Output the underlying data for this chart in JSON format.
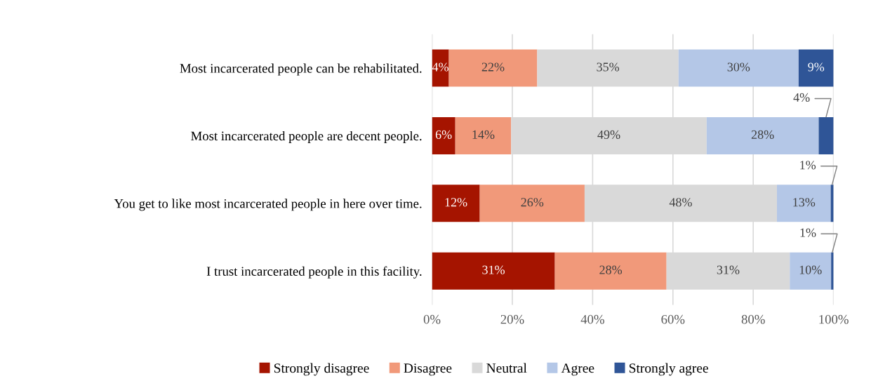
{
  "chart_data": {
    "type": "bar",
    "orientation": "horizontal",
    "stacked": true,
    "categories": [
      "Most incarcerated people can be rehabilitated.",
      "Most incarcerated people are decent people.",
      "You get to like most incarcerated people in here over time.",
      "I trust incarcerated people in this facility."
    ],
    "series": [
      {
        "name": "Strongly disagree",
        "color": "#a51400",
        "values": [
          4.2,
          5.8,
          11.9,
          30.6
        ],
        "value_labels": [
          "4%",
          "6%",
          "12%",
          "31%"
        ]
      },
      {
        "name": "Disagree",
        "color": "#f1997a",
        "values": [
          22.0,
          13.9,
          26.1,
          27.8
        ],
        "value_labels": [
          "22%",
          "14%",
          "26%",
          "28%"
        ]
      },
      {
        "name": "Neutral",
        "color": "#d9d9d9",
        "values": [
          35.2,
          48.7,
          47.9,
          30.7
        ],
        "value_labels": [
          "35%",
          "49%",
          "48%",
          "31%"
        ]
      },
      {
        "name": "Agree",
        "color": "#b4c7e7",
        "values": [
          29.9,
          27.9,
          13.4,
          10.3
        ],
        "value_labels": [
          "30%",
          "28%",
          "13%",
          "10%"
        ]
      },
      {
        "name": "Strongly agree",
        "color": "#2f5597",
        "values": [
          8.7,
          3.7,
          0.7,
          0.6
        ],
        "value_labels": [
          "9%",
          "4%",
          "1%",
          "1%"
        ]
      }
    ],
    "xlim": [
      0,
      100
    ],
    "xticks": [
      {
        "value": 0,
        "label": "0%"
      },
      {
        "value": 20,
        "label": "20%"
      },
      {
        "value": 40,
        "label": "40%"
      },
      {
        "value": 60,
        "label": "60%"
      },
      {
        "value": 80,
        "label": "80%"
      },
      {
        "value": 100,
        "label": "100%"
      }
    ],
    "grid": "x",
    "legend": "bottom"
  }
}
